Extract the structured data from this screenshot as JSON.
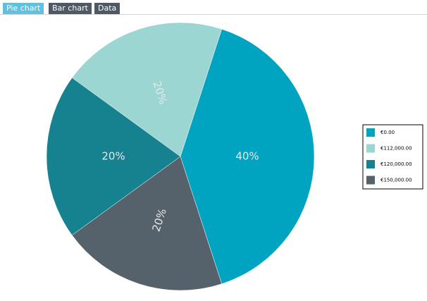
{
  "tabs": [
    "Pie chart",
    "Bar chart",
    "Data"
  ],
  "chart_data": {
    "type": "pie",
    "categories": [
      "€0.00",
      "€112,000.00",
      "€120,000.00",
      "€150,000.00"
    ],
    "values": [
      40,
      20,
      20,
      20
    ],
    "value_labels": [
      "40%",
      "20%",
      "20%",
      "20%"
    ],
    "colors": [
      "#00a3c0",
      "#9bd6d2",
      "#16818f",
      "#56626b"
    ],
    "legend": "right"
  }
}
